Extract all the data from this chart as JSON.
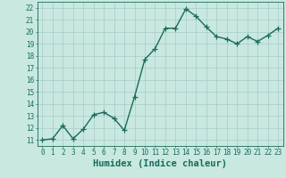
{
  "x": [
    0,
    1,
    2,
    3,
    4,
    5,
    6,
    7,
    8,
    9,
    10,
    11,
    12,
    13,
    14,
    15,
    16,
    17,
    18,
    19,
    20,
    21,
    22,
    23
  ],
  "y": [
    11.0,
    11.1,
    12.2,
    11.1,
    11.9,
    13.1,
    13.3,
    12.8,
    11.8,
    14.6,
    17.7,
    18.6,
    20.3,
    20.3,
    21.9,
    21.3,
    20.4,
    19.6,
    19.4,
    19.0,
    19.6,
    19.2,
    19.7,
    20.3
  ],
  "line_color": "#1a6b5a",
  "marker": "+",
  "marker_size": 4,
  "bg_color": "#c8e8e0",
  "grid_color": "#a8ccca",
  "xlabel": "Humidex (Indice chaleur)",
  "xlim": [
    -0.5,
    23.5
  ],
  "ylim": [
    10.5,
    22.5
  ],
  "yticks": [
    11,
    12,
    13,
    14,
    15,
    16,
    17,
    18,
    19,
    20,
    21,
    22
  ],
  "xticks": [
    0,
    1,
    2,
    3,
    4,
    5,
    6,
    7,
    8,
    9,
    10,
    11,
    12,
    13,
    14,
    15,
    16,
    17,
    18,
    19,
    20,
    21,
    22,
    23
  ],
  "tick_color": "#1a6b5a",
  "tick_fontsize": 5.5,
  "xlabel_fontsize": 7.5,
  "line_width": 1.0
}
